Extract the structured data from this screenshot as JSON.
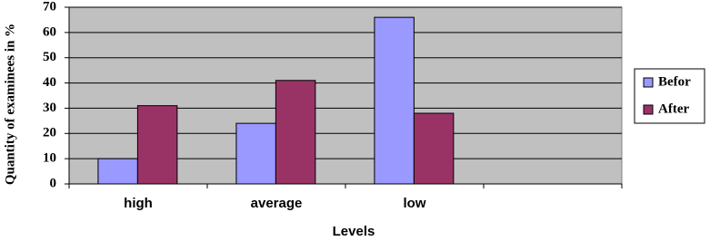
{
  "chart_data": {
    "type": "bar",
    "x_label": "Levels",
    "y_label": "Quantity of examinees in %",
    "categories": [
      "high",
      "average",
      "low",
      null
    ],
    "series": [
      {
        "name": "Befor",
        "color": "#9999ff",
        "values": [
          10,
          24,
          66,
          null
        ]
      },
      {
        "name": "After",
        "color": "#993366",
        "values": [
          31,
          41,
          28,
          null
        ]
      }
    ],
    "ylim": [
      0,
      70
    ],
    "yticks": [
      0,
      10,
      20,
      30,
      40,
      50,
      60,
      70
    ],
    "grid": true,
    "legend": "right"
  }
}
